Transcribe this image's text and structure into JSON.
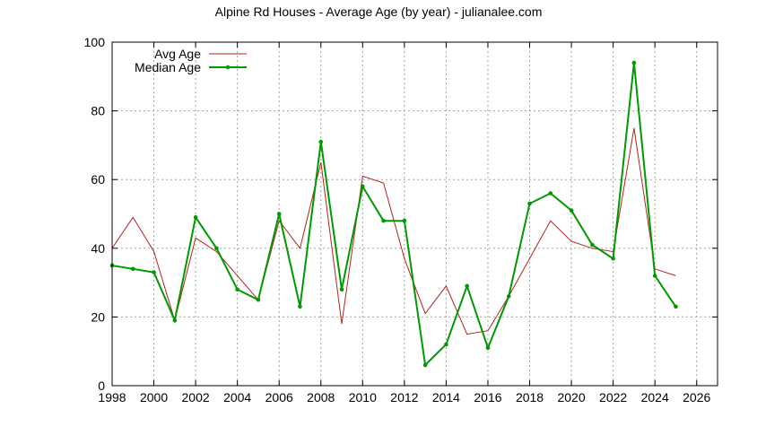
{
  "chart_data": {
    "type": "line",
    "title": "Alpine Rd Houses - Average Age (by year) - julianalee.com",
    "xlabel": "",
    "ylabel": "",
    "xlim": [
      1998,
      2027
    ],
    "ylim": [
      0,
      100
    ],
    "x_ticks": [
      1998,
      2000,
      2002,
      2004,
      2006,
      2008,
      2010,
      2012,
      2014,
      2016,
      2018,
      2020,
      2022,
      2024,
      2026
    ],
    "y_ticks": [
      0,
      20,
      40,
      60,
      80,
      100
    ],
    "grid": true,
    "legend_position": "top-left",
    "series": [
      {
        "name": "Avg Age",
        "color": "#b22222",
        "x": [
          1998,
          1999,
          2000,
          2001,
          2002,
          2003,
          2004,
          2005,
          2006,
          2007,
          2008,
          2009,
          2010,
          2011,
          2012,
          2013,
          2014,
          2015,
          2016,
          2017,
          2018,
          2019,
          2020,
          2021,
          2022,
          2023,
          2024,
          2025
        ],
        "values": [
          40,
          49,
          39,
          19,
          43,
          39,
          32,
          25,
          48,
          40,
          65,
          18,
          61,
          59,
          37,
          21,
          29,
          15,
          16,
          26,
          37,
          48,
          42,
          40,
          39,
          75,
          34,
          32
        ]
      },
      {
        "name": "Median Age",
        "color": "#009900",
        "x": [
          1998,
          1999,
          2000,
          2001,
          2002,
          2003,
          2004,
          2005,
          2006,
          2007,
          2008,
          2009,
          2010,
          2011,
          2012,
          2013,
          2014,
          2015,
          2016,
          2017,
          2018,
          2019,
          2020,
          2021,
          2022,
          2023,
          2024,
          2025
        ],
        "values": [
          35,
          34,
          33,
          19,
          49,
          40,
          28,
          25,
          50,
          23,
          71,
          28,
          58,
          48,
          48,
          6,
          12,
          29,
          11,
          26,
          53,
          56,
          51,
          41,
          37,
          94,
          32,
          23
        ]
      }
    ]
  }
}
